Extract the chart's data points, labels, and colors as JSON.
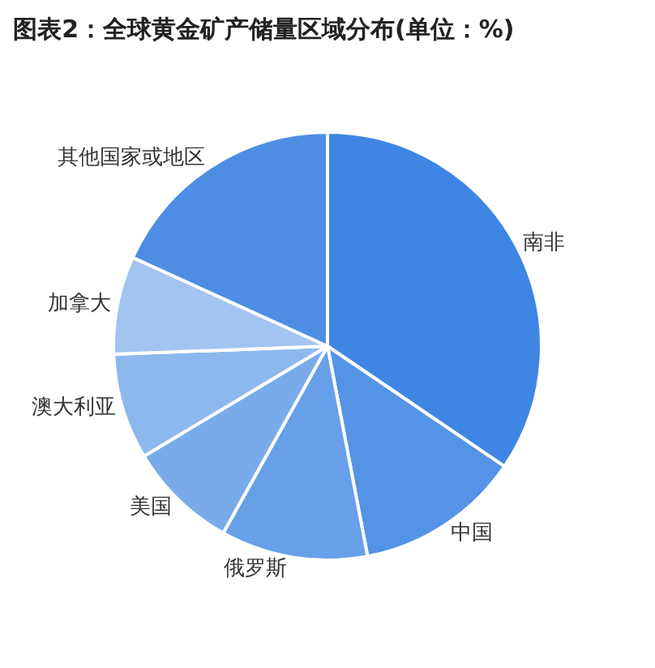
{
  "chart_data": {
    "type": "pie",
    "title": "图表2：全球黄金矿产储量区域分布(单位：%)",
    "categories": [
      "南非",
      "中国",
      "俄罗斯",
      "美国",
      "澳大利亚",
      "加拿大",
      "其他国家或地区"
    ],
    "values": [
      34.5,
      12.5,
      11.1,
      8.3,
      8.0,
      7.4,
      18.2
    ],
    "colors": [
      "#3f86e4",
      "#5593e6",
      "#679fe8",
      "#79abea",
      "#8db8ee",
      "#a2c4f0",
      "#4d8ee4"
    ],
    "legend": false
  }
}
